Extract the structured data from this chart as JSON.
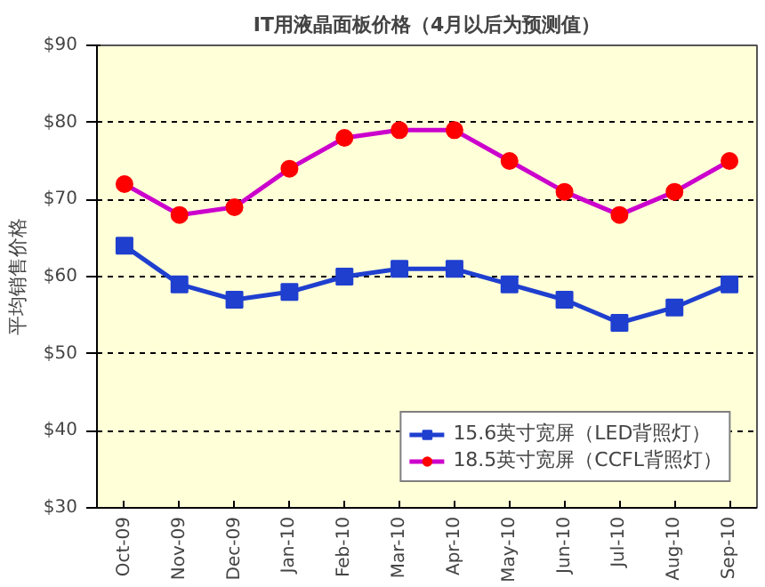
{
  "chart_data": {
    "type": "line",
    "title": "IT用液晶面板价格（4月以后为预测值）",
    "ylabel": "平均销售价格",
    "categories": [
      "Oct-09",
      "Nov-09",
      "Dec-09",
      "Jan-10",
      "Feb-10",
      "Mar-10",
      "Apr-10",
      "May-10",
      "Jun-10",
      "Jul-10",
      "Aug-10",
      "Sep-10"
    ],
    "series": [
      {
        "name": "15.6英寸宽屏（LED背照灯）",
        "color": "#1f3fcf",
        "marker": "square",
        "values": [
          64,
          59,
          57,
          58,
          60,
          61,
          61,
          59,
          57,
          54,
          56,
          59
        ]
      },
      {
        "name": "18.5英寸宽屏（CCFL背照灯）",
        "color": "#cc00cc",
        "colors": [
          "#ff0000",
          "#ff0000",
          "#ff0000",
          "#ff0000",
          "#ff0000",
          "#ff0000",
          "#ff0000",
          "#ff0000",
          "#ff0000",
          "#ff0000",
          "#ff0000",
          "#ff0000"
        ],
        "marker": "circle",
        "values": [
          72,
          68,
          69,
          74,
          78,
          79,
          79,
          75,
          71,
          68,
          71,
          75
        ]
      }
    ],
    "ylim": [
      30,
      90
    ],
    "yticks": [
      {
        "value": 30,
        "label": "$30"
      },
      {
        "value": 40,
        "label": "$40"
      },
      {
        "value": 50,
        "label": "$50"
      },
      {
        "value": 60,
        "label": "$60"
      },
      {
        "value": 70,
        "label": "$70"
      },
      {
        "value": 80,
        "label": "$80"
      },
      {
        "value": 90,
        "label": "$90"
      }
    ],
    "grid": "y",
    "legend": "bottom right",
    "line_style": "solid"
  }
}
